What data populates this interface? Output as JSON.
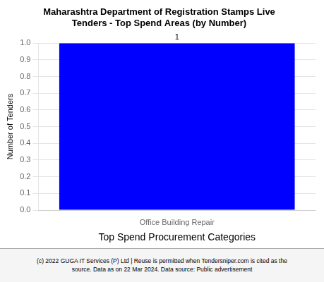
{
  "chart_data": {
    "type": "bar",
    "title": "Maharashtra Department of Registration Stamps Live\nTenders - Top Spend Areas (by Number)",
    "categories": [
      "Office Building Repair"
    ],
    "values": [
      1
    ],
    "color": "#0000FF",
    "xlabel": "Top Spend Procurement Categories",
    "ylabel": "Number of Tenders",
    "ylim": [
      0,
      1
    ],
    "yticks": [
      {
        "value": 0,
        "label": "0.0"
      },
      0.1,
      0.2,
      0.3,
      0.4,
      0.5,
      0.6,
      0.7,
      0.8,
      0.9,
      {
        "value": 1,
        "label": "1.0"
      }
    ],
    "grid": true,
    "data_labels": true,
    "annotations": [
      "(c) 2022 GUGA IT Services (P) Ltd | Reuse is permitted when Tendersniper.com is cited as the\nsource. Data as on 22 Mar 2024. Data source: Public advertisement"
    ]
  }
}
